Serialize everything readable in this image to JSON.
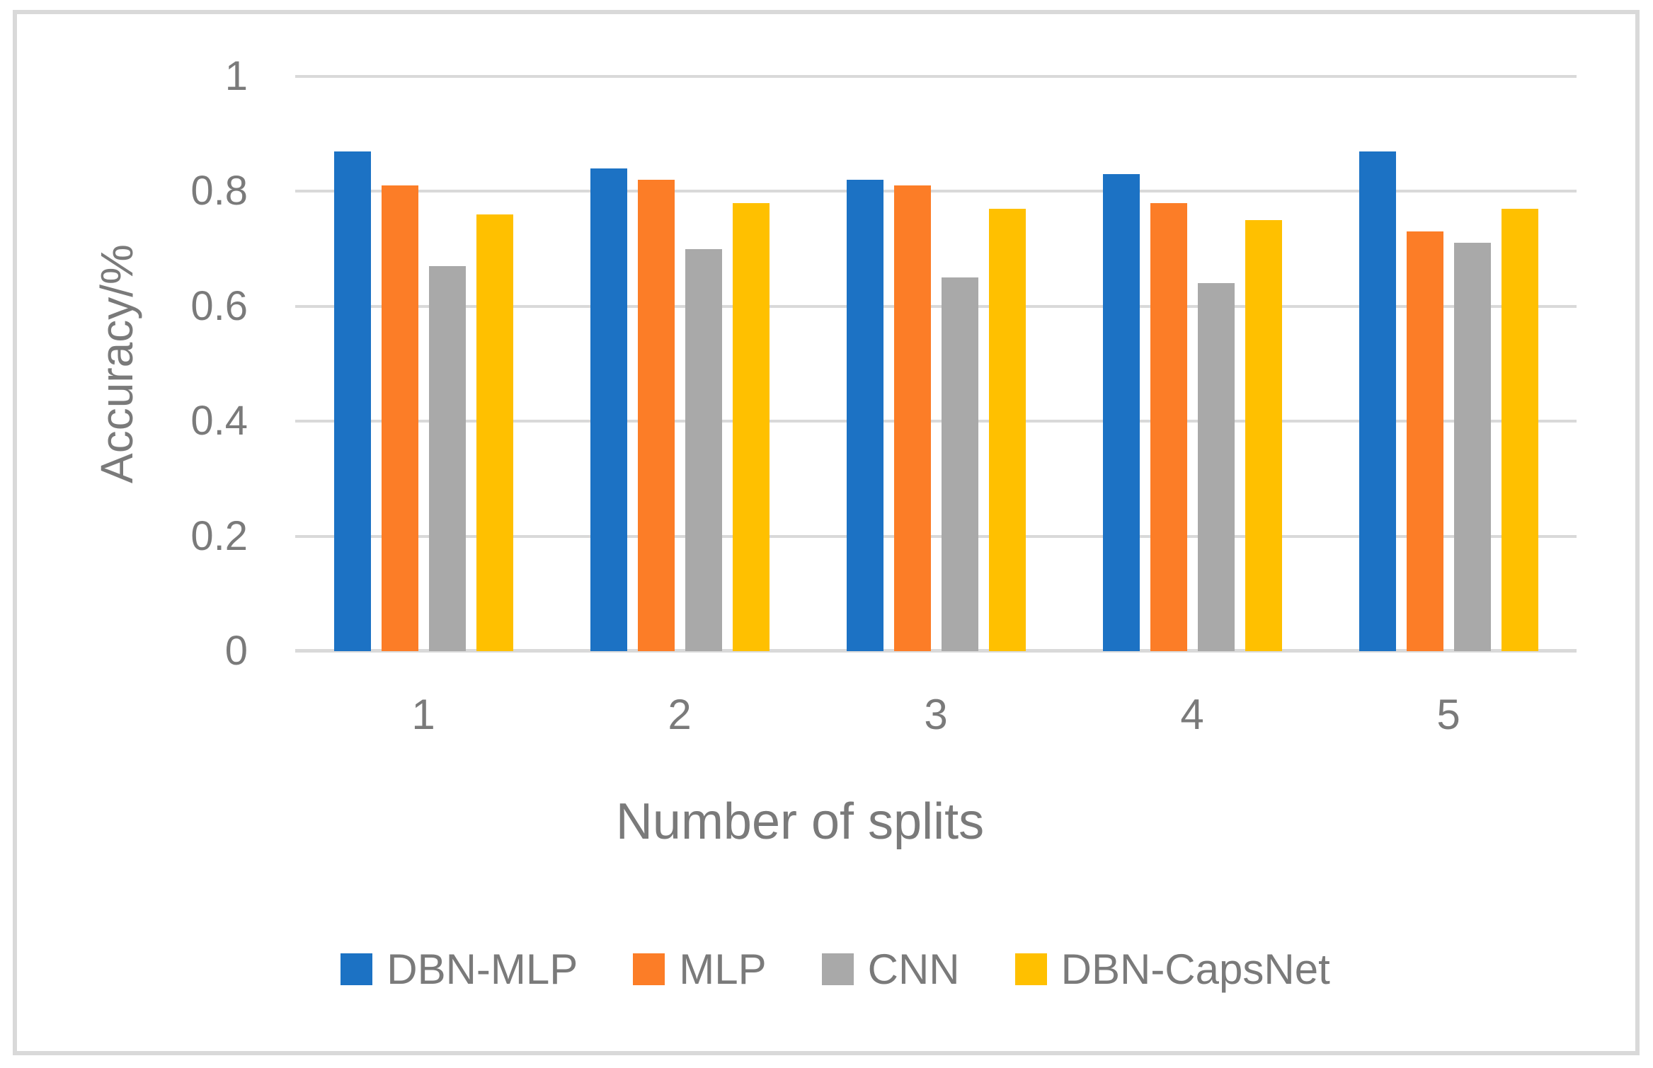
{
  "chart_data": {
    "type": "bar",
    "categories": [
      "1",
      "2",
      "3",
      "4",
      "5"
    ],
    "series": [
      {
        "name": "DBN-MLP",
        "color": "#1C72C4",
        "values": [
          0.87,
          0.84,
          0.82,
          0.83,
          0.87
        ]
      },
      {
        "name": "MLP",
        "color": "#FC7D27",
        "values": [
          0.81,
          0.82,
          0.81,
          0.78,
          0.73
        ]
      },
      {
        "name": "CNN",
        "color": "#A9A9A9",
        "values": [
          0.67,
          0.7,
          0.65,
          0.64,
          0.71
        ]
      },
      {
        "name": "DBN-CapsNet",
        "color": "#FFC000",
        "values": [
          0.76,
          0.78,
          0.77,
          0.75,
          0.77
        ]
      }
    ],
    "xlabel": "Number of splits",
    "ylabel": "Accuracy/%",
    "ylim": [
      0,
      1
    ],
    "y_ticks": [
      {
        "label": "1",
        "value": 1.0
      },
      {
        "label": "0.8",
        "value": 0.8
      },
      {
        "label": "0.6",
        "value": 0.6
      },
      {
        "label": "0.4",
        "value": 0.4
      },
      {
        "label": "0.2",
        "value": 0.2
      },
      {
        "label": "0",
        "value": 0.0
      }
    ],
    "grid": true,
    "gridline_color": "#D9D9D9",
    "frame_color": "#D9D9D9",
    "text_color": "#7A7A7A",
    "legend_position": "bottom"
  }
}
